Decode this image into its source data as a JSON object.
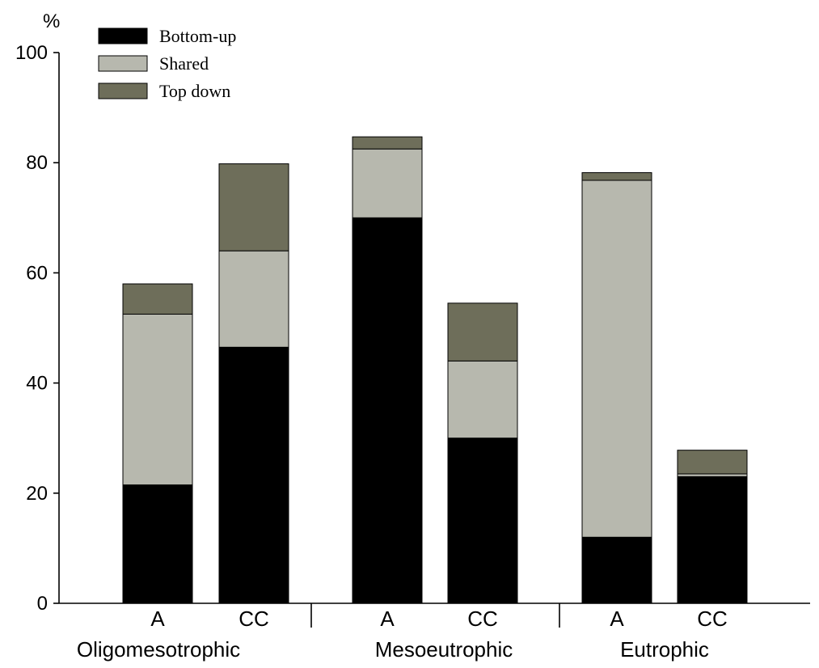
{
  "chart_data": {
    "type": "bar",
    "stacked": true,
    "ylabel": "%",
    "ylim": [
      0,
      100
    ],
    "yticks": [
      0,
      20,
      40,
      60,
      80,
      100
    ],
    "categories": [
      "A",
      "CC",
      "A",
      "CC",
      "A",
      "CC"
    ],
    "groups": [
      "Oligomesotrophic",
      "Mesoeutrophic",
      "Eutrophic"
    ],
    "series": [
      {
        "name": "Bottom-up",
        "color": "#000000",
        "values": [
          21.5,
          46.5,
          70.0,
          30.0,
          12.0,
          23.0
        ]
      },
      {
        "name": "Shared",
        "color": "#b7b8ae",
        "values": [
          31.0,
          17.5,
          12.5,
          14.0,
          64.8,
          0.5
        ]
      },
      {
        "name": "Top down",
        "color": "#6e6e5a",
        "values": [
          5.5,
          15.8,
          2.2,
          10.5,
          1.4,
          4.3
        ]
      }
    ],
    "legend_position": "top-left",
    "grid": false
  }
}
